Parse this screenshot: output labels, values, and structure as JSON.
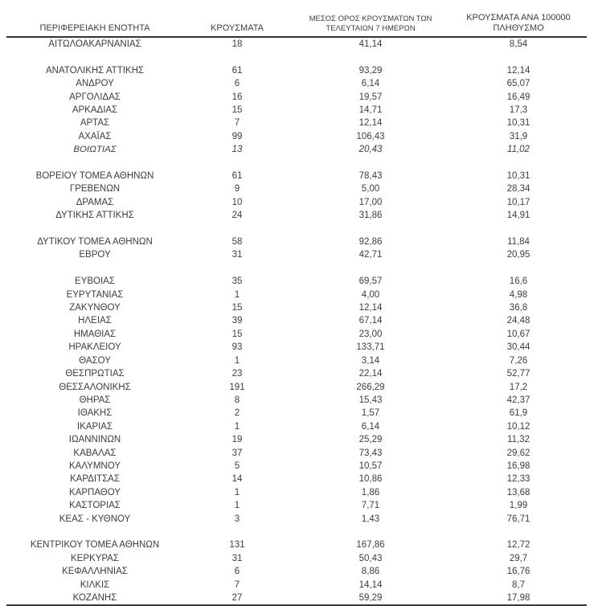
{
  "table": {
    "columns": [
      {
        "key": "region",
        "label": "ΠΕΡΙΦΕΡΕΙΑΚΗ ΕΝΟΤΗΤΑ",
        "small": false
      },
      {
        "key": "cases",
        "label": "ΚΡΟΥΣΜΑΤΑ",
        "small": false
      },
      {
        "key": "avg7",
        "label": "ΜΕΣΟΣ ΟΡΟΣ ΚΡΟΥΣΜΑΤΩΝ ΤΩΝ\nΤΕΛΕΥΤΑΙΩΝ 7 ΗΜΕΡΩΝ",
        "small": true
      },
      {
        "key": "per100k",
        "label": "ΚΡΟΥΣΜΑΤΑ ΑΝΑ 100000\nΠΛΗΘΥΣΜΟ",
        "small": false
      }
    ],
    "groups": [
      {
        "rows": [
          {
            "region": "ΑΙΤΩΛΟΑΚΑΡΝΑΝΙΑΣ",
            "cases": "18",
            "avg7": "41,14",
            "per100k": "8,54"
          }
        ]
      },
      {
        "rows": [
          {
            "region": "ΑΝΑΤΟΛΙΚΗΣ ΑΤΤΙΚΗΣ",
            "cases": "61",
            "avg7": "93,29",
            "per100k": "12,14"
          },
          {
            "region": "ΑΝΔΡΟΥ",
            "cases": "6",
            "avg7": "6,14",
            "per100k": "65,07"
          },
          {
            "region": "ΑΡΓΟΛΙΔΑΣ",
            "cases": "16",
            "avg7": "19,57",
            "per100k": "16,49"
          },
          {
            "region": "ΑΡΚΑΔΙΑΣ",
            "cases": "15",
            "avg7": "14,71",
            "per100k": "17,3"
          },
          {
            "region": "ΑΡΤΑΣ",
            "cases": "7",
            "avg7": "12,14",
            "per100k": "10,31"
          },
          {
            "region": "ΑΧΑΪΑΣ",
            "cases": "99",
            "avg7": "106,43",
            "per100k": "31,9"
          },
          {
            "region": "ΒΟΙΩΤΙΑΣ",
            "cases": "13",
            "avg7": "20,43",
            "per100k": "11,02",
            "italic": true
          }
        ]
      },
      {
        "rows": [
          {
            "region": "ΒΟΡΕΙΟΥ ΤΟΜΕΑ ΑΘΗΝΩΝ",
            "cases": "61",
            "avg7": "78,43",
            "per100k": "10,31"
          },
          {
            "region": "ΓΡΕΒΕΝΩΝ",
            "cases": "9",
            "avg7": "5,00",
            "per100k": "28,34"
          },
          {
            "region": "ΔΡΑΜΑΣ",
            "cases": "10",
            "avg7": "17,00",
            "per100k": "10,17"
          },
          {
            "region": "ΔΥΤΙΚΗΣ ΑΤΤΙΚΗΣ",
            "cases": "24",
            "avg7": "31,86",
            "per100k": "14,91"
          }
        ]
      },
      {
        "rows": [
          {
            "region": "ΔΥΤΙΚΟΥ ΤΟΜΕΑ ΑΘΗΝΩΝ",
            "cases": "58",
            "avg7": "92,86",
            "per100k": "11,84"
          },
          {
            "region": "ΕΒΡΟΥ",
            "cases": "31",
            "avg7": "42,71",
            "per100k": "20,95"
          }
        ]
      },
      {
        "rows": [
          {
            "region": "ΕΥΒΟΙΑΣ",
            "cases": "35",
            "avg7": "69,57",
            "per100k": "16,6"
          },
          {
            "region": "ΕΥΡΥΤΑΝΙΑΣ",
            "cases": "1",
            "avg7": "4,00",
            "per100k": "4,98"
          },
          {
            "region": "ΖΑΚΥΝΘΟΥ",
            "cases": "15",
            "avg7": "12,14",
            "per100k": "36,8"
          },
          {
            "region": "ΗΛΕΙΑΣ",
            "cases": "39",
            "avg7": "67,14",
            "per100k": "24,48"
          },
          {
            "region": "ΗΜΑΘΙΑΣ",
            "cases": "15",
            "avg7": "23,00",
            "per100k": "10,67"
          },
          {
            "region": "ΗΡΑΚΛΕΙΟΥ",
            "cases": "93",
            "avg7": "133,71",
            "per100k": "30,44"
          },
          {
            "region": "ΘΑΣΟΥ",
            "cases": "1",
            "avg7": "3,14",
            "per100k": "7,26"
          },
          {
            "region": "ΘΕΣΠΡΩΤΙΑΣ",
            "cases": "23",
            "avg7": "22,14",
            "per100k": "52,77"
          },
          {
            "region": "ΘΕΣΣΑΛΟΝΙΚΗΣ",
            "cases": "191",
            "avg7": "266,29",
            "per100k": "17,2"
          },
          {
            "region": "ΘΗΡΑΣ",
            "cases": "8",
            "avg7": "15,43",
            "per100k": "42,37"
          },
          {
            "region": "ΙΘΑΚΗΣ",
            "cases": "2",
            "avg7": "1,57",
            "per100k": "61,9"
          },
          {
            "region": "ΙΚΑΡΙΑΣ",
            "cases": "1",
            "avg7": "6,14",
            "per100k": "10,12"
          },
          {
            "region": "ΙΩΑΝΝΙΝΩΝ",
            "cases": "19",
            "avg7": "25,29",
            "per100k": "11,32"
          },
          {
            "region": "ΚΑΒΑΛΑΣ",
            "cases": "37",
            "avg7": "73,43",
            "per100k": "29,62"
          },
          {
            "region": "ΚΑΛΥΜΝΟΥ",
            "cases": "5",
            "avg7": "10,57",
            "per100k": "16,98"
          },
          {
            "region": "ΚΑΡΔΙΤΣΑΣ",
            "cases": "14",
            "avg7": "10,86",
            "per100k": "12,33"
          },
          {
            "region": "ΚΑΡΠΑΘΟΥ",
            "cases": "1",
            "avg7": "1,86",
            "per100k": "13,68"
          },
          {
            "region": "ΚΑΣΤΟΡΙΑΣ",
            "cases": "1",
            "avg7": "7,71",
            "per100k": "1,99"
          },
          {
            "region": "ΚΕΑΣ - ΚΥΘΝΟΥ",
            "cases": "3",
            "avg7": "1,43",
            "per100k": "76,71"
          }
        ]
      },
      {
        "rows": [
          {
            "region": "ΚΕΝΤΡΙΚΟΥ ΤΟΜΕΑ ΑΘΗΝΩΝ",
            "cases": "131",
            "avg7": "167,86",
            "per100k": "12,72"
          },
          {
            "region": "ΚΕΡΚΥΡΑΣ",
            "cases": "31",
            "avg7": "50,43",
            "per100k": "29,7"
          },
          {
            "region": "ΚΕΦΑΛΛΗΝΙΑΣ",
            "cases": "6",
            "avg7": "8,86",
            "per100k": "16,76"
          },
          {
            "region": "ΚΙΛΚΙΣ",
            "cases": "7",
            "avg7": "14,14",
            "per100k": "8,7"
          },
          {
            "region": "ΚΟΖΑΝΗΣ",
            "cases": "27",
            "avg7": "59,29",
            "per100k": "17,98"
          }
        ]
      }
    ]
  }
}
